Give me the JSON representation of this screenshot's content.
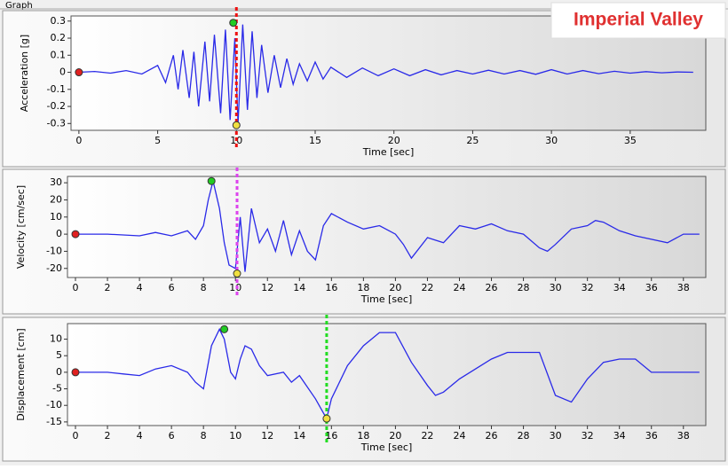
{
  "window": {
    "tab": "Graph"
  },
  "overlay_title": "Imperial Valley",
  "chart_data": [
    {
      "type": "line",
      "x_label": "Time [sec]",
      "y_label": "Acceleration [g]",
      "xlim": [
        -0.5,
        39.8
      ],
      "xticks": [
        0,
        5,
        10,
        15,
        20,
        25,
        30,
        35
      ],
      "ylim": [
        -0.34,
        0.33
      ],
      "yticks": [
        0.3,
        0.2,
        0.1,
        0,
        -0.1,
        -0.2,
        -0.3
      ],
      "x": [
        0,
        1,
        2,
        3,
        4,
        5,
        5.5,
        6,
        6.3,
        6.6,
        7,
        7.3,
        7.6,
        8,
        8.3,
        8.6,
        9,
        9.3,
        9.6,
        9.9,
        10.1,
        10.4,
        10.7,
        11,
        11.3,
        11.6,
        12,
        12.4,
        12.8,
        13.2,
        13.6,
        14,
        14.5,
        15,
        15.5,
        16,
        17,
        18,
        19,
        20,
        21,
        22,
        23,
        24,
        25,
        26,
        27,
        28,
        29,
        30,
        31,
        32,
        33,
        34,
        35,
        36,
        37,
        38,
        39
      ],
      "values": [
        0,
        0.005,
        -0.005,
        0.01,
        -0.01,
        0.04,
        -0.06,
        0.1,
        -0.1,
        0.13,
        -0.15,
        0.12,
        -0.2,
        0.18,
        -0.17,
        0.22,
        -0.24,
        0.25,
        -0.28,
        0.2,
        -0.3,
        0.28,
        -0.22,
        0.24,
        -0.15,
        0.16,
        -0.12,
        0.1,
        -0.09,
        0.08,
        -0.07,
        0.05,
        -0.05,
        0.06,
        -0.04,
        0.03,
        -0.03,
        0.025,
        -0.02,
        0.02,
        -0.02,
        0.015,
        -0.015,
        0.01,
        -0.01,
        0.012,
        -0.01,
        0.01,
        -0.012,
        0.015,
        -0.01,
        0.01,
        -0.008,
        0.006,
        -0.005,
        0.004,
        -0.003,
        0.002,
        0
      ],
      "color": "#2a2ae8",
      "markers": [
        {
          "x": 0,
          "y": 0,
          "color": "#e02020"
        },
        {
          "x": 9.8,
          "y": 0.29,
          "color": "#22cc22"
        },
        {
          "x": 10,
          "y": -0.31,
          "color": "#f0e040"
        }
      ],
      "cursor_x": 10,
      "cursor_color": "#ee1111"
    },
    {
      "type": "line",
      "x_label": "Time [sec]",
      "y_label": "Velocity [cm/sec]",
      "xlim": [
        -0.5,
        39.4
      ],
      "xticks": [
        0,
        2,
        4,
        6,
        8,
        10,
        12,
        14,
        16,
        18,
        20,
        22,
        24,
        26,
        28,
        30,
        32,
        34,
        36,
        38
      ],
      "ylim": [
        -25.3,
        33.7
      ],
      "yticks": [
        30,
        20,
        10,
        0,
        -10,
        -20
      ],
      "x": [
        0,
        2,
        4,
        5,
        6,
        7,
        7.5,
        8,
        8.3,
        8.6,
        9,
        9.3,
        9.6,
        10,
        10.3,
        10.6,
        11,
        11.5,
        12,
        12.5,
        13,
        13.5,
        14,
        14.5,
        15,
        15.5,
        16,
        17,
        18,
        19,
        20,
        20.5,
        21,
        22,
        23,
        24,
        25,
        26,
        27,
        28,
        29,
        29.5,
        30,
        31,
        32,
        32.5,
        33,
        34,
        35,
        36,
        37,
        38,
        39
      ],
      "values": [
        0,
        0,
        -1,
        1,
        -1,
        2,
        -3,
        5,
        20,
        31,
        15,
        -5,
        -18,
        -20,
        10,
        -22,
        15,
        -5,
        3,
        -10,
        8,
        -12,
        2,
        -10,
        -15,
        5,
        12,
        7,
        3,
        5,
        0,
        -6,
        -14,
        -2,
        -5,
        5,
        3,
        6,
        2,
        0,
        -8,
        -10,
        -6,
        3,
        5,
        8,
        7,
        2,
        -1,
        -3,
        -5,
        0,
        0
      ],
      "color": "#2a2ae8",
      "markers": [
        {
          "x": 0,
          "y": 0,
          "color": "#e02020"
        },
        {
          "x": 8.5,
          "y": 31,
          "color": "#22cc22"
        },
        {
          "x": 10.1,
          "y": -23,
          "color": "#f0e040"
        }
      ],
      "cursor_x": 10.1,
      "cursor_color": "#dd44ee"
    },
    {
      "type": "line",
      "x_label": "Time [sec]",
      "y_label": "Displacement [cm]",
      "xlim": [
        -0.5,
        39.4
      ],
      "xticks": [
        0,
        2,
        4,
        6,
        8,
        10,
        12,
        14,
        16,
        18,
        20,
        22,
        24,
        26,
        28,
        30,
        32,
        34,
        36,
        38
      ],
      "ylim": [
        -16.1,
        14.7
      ],
      "yticks": [
        10,
        5,
        0,
        -5,
        -10,
        -15
      ],
      "x": [
        0,
        2,
        3,
        4,
        5,
        6,
        7,
        7.5,
        8,
        8.5,
        9,
        9.3,
        9.7,
        10,
        10.3,
        10.6,
        11,
        11.5,
        12,
        13,
        13.5,
        14,
        15,
        15.7,
        16,
        17,
        18,
        19,
        20,
        21,
        22,
        22.5,
        23,
        24,
        25,
        26,
        27,
        28,
        29,
        30,
        31,
        32,
        33,
        34,
        35,
        36,
        37,
        38,
        39
      ],
      "values": [
        0,
        0,
        -0.5,
        -1,
        1,
        2,
        0,
        -3,
        -5,
        8,
        13,
        10,
        0,
        -2,
        4,
        8,
        7,
        2,
        -1,
        0,
        -3,
        -1,
        -8,
        -14,
        -8,
        2,
        8,
        12,
        12,
        3,
        -4,
        -7,
        -6,
        -2,
        1,
        4,
        6,
        6,
        6,
        -7,
        -9,
        -2,
        3,
        4,
        4,
        0,
        0,
        0,
        0
      ],
      "color": "#2a2ae8",
      "markers": [
        {
          "x": 0,
          "y": 0,
          "color": "#e02020"
        },
        {
          "x": 9.3,
          "y": 13,
          "color": "#22cc22"
        },
        {
          "x": 15.7,
          "y": -14,
          "color": "#f0e040"
        }
      ],
      "cursor_x": 15.7,
      "cursor_color": "#22dd22"
    }
  ]
}
